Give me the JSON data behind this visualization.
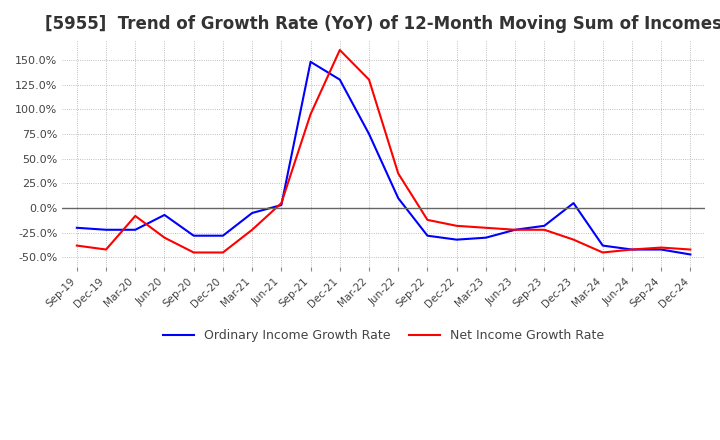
{
  "title": "[5955]  Trend of Growth Rate (YoY) of 12-Month Moving Sum of Incomes",
  "title_fontsize": 12,
  "ylim": [
    -60,
    170
  ],
  "yticks": [
    -50,
    -25,
    0,
    25,
    50,
    75,
    100,
    125,
    150
  ],
  "ytick_labels": [
    "-50.0%",
    "-25.0%",
    "0.0%",
    "25.0%",
    "50.0%",
    "75.0%",
    "100.0%",
    "125.0%",
    "150.0%"
  ],
  "x_labels": [
    "Sep-19",
    "Dec-19",
    "Mar-20",
    "Jun-20",
    "Sep-20",
    "Dec-20",
    "Mar-21",
    "Jun-21",
    "Sep-21",
    "Dec-21",
    "Mar-22",
    "Jun-22",
    "Sep-22",
    "Dec-22",
    "Mar-23",
    "Jun-23",
    "Sep-23",
    "Dec-23",
    "Mar-24",
    "Jun-24",
    "Sep-24",
    "Dec-24"
  ],
  "ordinary_income": [
    -20,
    -22,
    -22,
    -7,
    -28,
    -28,
    -5,
    3,
    148,
    130,
    75,
    10,
    -28,
    -32,
    -30,
    -22,
    -18,
    5,
    -38,
    -42,
    -42,
    -47
  ],
  "net_income": [
    -38,
    -42,
    -8,
    -30,
    -45,
    -45,
    -22,
    5,
    95,
    160,
    130,
    35,
    -12,
    -18,
    -20,
    -22,
    -22,
    -32,
    -45,
    -42,
    -40,
    -42
  ],
  "ordinary_color": "#0000ff",
  "net_color": "#ff0000",
  "line_width": 1.5,
  "legend_ordinary": "Ordinary Income Growth Rate",
  "legend_net": "Net Income Growth Rate",
  "grid_color": "#aaaaaa",
  "background_color": "#ffffff",
  "fig_width": 7.2,
  "fig_height": 4.4,
  "dpi": 100
}
